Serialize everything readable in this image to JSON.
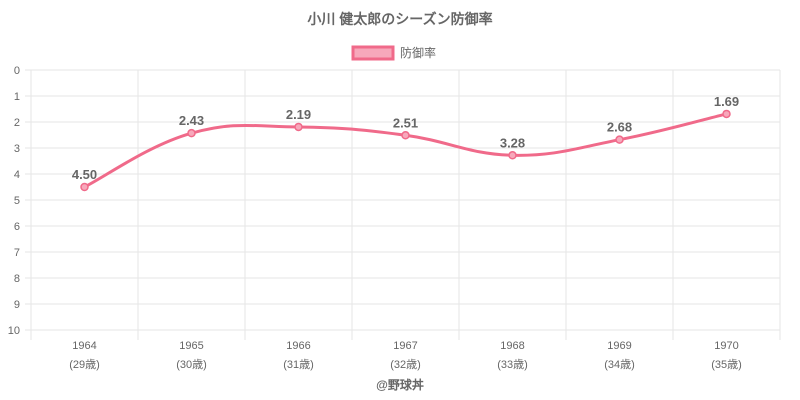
{
  "chart_data": {
    "type": "line",
    "title": "小川 健太郎のシーズン防御率",
    "categories": [
      "1964",
      "1965",
      "1966",
      "1967",
      "1968",
      "1969",
      "1970"
    ],
    "category_sublabels": [
      "(29歳)",
      "(30歳)",
      "(31歳)",
      "(32歳)",
      "(33歳)",
      "(34歳)",
      "(35歳)"
    ],
    "series": [
      {
        "name": "防御率",
        "values": [
          4.5,
          2.43,
          2.19,
          2.51,
          3.28,
          2.68,
          1.69
        ],
        "value_labels": [
          "4.50",
          "2.43",
          "2.19",
          "2.51",
          "3.28",
          "2.68",
          "1.69"
        ]
      }
    ],
    "ylim": [
      0,
      10
    ],
    "y_reversed": true,
    "y_ticks": [
      "0",
      "1",
      "2",
      "3",
      "4",
      "5",
      "6",
      "7",
      "8",
      "9",
      "10"
    ],
    "grid": true,
    "legend_position": "top",
    "xlabel": "",
    "ylabel": "",
    "colors": {
      "line": "#f06a8a",
      "fill": "#f7a8bb",
      "text": "#666666",
      "grid": "#e6e6e6"
    }
  },
  "footer": "@野球丼"
}
